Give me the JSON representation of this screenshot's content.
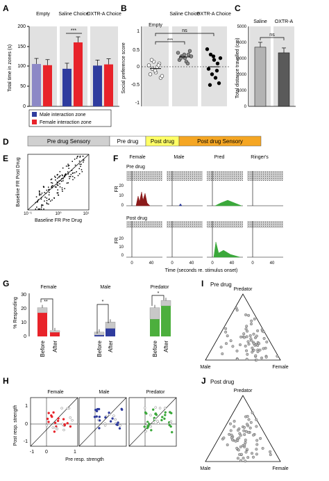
{
  "panels": {
    "A": {
      "label": "A",
      "groups": [
        "Empty",
        "Saline Choice",
        "OXTR-A Choice"
      ],
      "ylabel": "Total time in zones (s)",
      "yticks": [
        "0",
        "50",
        "100",
        "150",
        "200"
      ],
      "sig": "***",
      "legend": [
        "Male interaction zone",
        "Female interaction zone"
      ]
    },
    "B": {
      "label": "B",
      "groups": [
        "Empty",
        "Saline Choice",
        "OXTR-A Choice"
      ],
      "ylabel": "Social preference score",
      "yticks": [
        "1",
        "0.5",
        "0",
        "-0.5",
        "-1"
      ],
      "sig_ns": "ns",
      "sig_star": "***"
    },
    "C": {
      "label": "C",
      "groups": [
        "Saline",
        "OXTR-A"
      ],
      "ylabel": "Total distance travelled (cm)",
      "yticks": [
        "0",
        "1000",
        "2000",
        "3000",
        "4000",
        "5000"
      ],
      "sig_ns": "ns"
    },
    "D": {
      "label": "D",
      "stages": [
        "Pre drug Sensory",
        "Pre drug",
        "Post drug",
        "Post drug Sensory"
      ]
    },
    "E": {
      "label": "E",
      "ylabel": "Baseline FR Post Drug",
      "xlabel": "Baseline FR Pre Drug"
    },
    "F": {
      "label": "F",
      "columns": [
        "Female",
        "Male",
        "Pred",
        "Ringer's"
      ],
      "row1": "Pre drug",
      "row2": "Post drug",
      "ylabel": "FR",
      "yticks": [
        "20",
        "10",
        "0"
      ],
      "xticks": [
        "0",
        "40"
      ],
      "xlabel": "Time (seconds re. stimulus onset)"
    },
    "G": {
      "label": "G",
      "ylabel": "% Responding",
      "yticks": [
        "0",
        "10",
        "20",
        "30"
      ],
      "groups": [
        "Female",
        "Male",
        "Predator"
      ],
      "xticks": [
        "Before",
        "After"
      ],
      "sig": [
        "**",
        "*",
        "*"
      ]
    },
    "H": {
      "label": "H",
      "groups": [
        "Female",
        "Male",
        "Predator"
      ],
      "ylabel": "Post resp. strength",
      "xlabel": "Pre resp. strength",
      "ticks": [
        "-1",
        "0",
        "1"
      ]
    },
    "I": {
      "label": "I",
      "title": "Pre drug",
      "vertices": [
        "Predator",
        "Male",
        "Female"
      ]
    },
    "J": {
      "label": "J",
      "title": "Post drug",
      "vertices": [
        "Predator",
        "Male",
        "Female"
      ]
    }
  },
  "chart_data": [
    {
      "panel": "A",
      "type": "bar",
      "categories": [
        "Empty",
        "Saline Choice",
        "OXTR-A Choice"
      ],
      "series": [
        {
          "name": "Male interaction zone",
          "values": [
            106,
            94,
            102
          ],
          "color": "#2f3c9e"
        },
        {
          "name": "Female interaction zone",
          "values": [
            103,
            160,
            105
          ],
          "color": "#e8232a"
        }
      ],
      "ylabel": "Total time in zones (s)",
      "ylim": [
        0,
        200
      ]
    },
    {
      "panel": "B",
      "type": "scatter",
      "categories": [
        "Empty",
        "Saline Choice",
        "OXTR-A Choice"
      ],
      "ylabel": "Social preference score",
      "ylim": [
        -1,
        1
      ],
      "series": [
        {
          "values": [
            0.05,
            -0.05,
            -0.15,
            0.1,
            -0.2,
            0.15,
            0.0,
            -0.3,
            0.2,
            -0.1,
            0.05,
            -0.25
          ]
        },
        {
          "values": [
            0.4,
            0.3,
            0.25,
            0.35,
            0.2,
            0.3,
            0.15,
            0.45,
            0.25,
            0.35,
            0.1,
            0.3
          ]
        },
        {
          "values": [
            0.5,
            0.35,
            0.2,
            0.1,
            -0.05,
            -0.2,
            -0.3,
            -0.45,
            -0.5,
            0.3,
            -0.1,
            0.25
          ]
        }
      ]
    },
    {
      "panel": "C",
      "type": "bar",
      "categories": [
        "Saline",
        "OXTR-A"
      ],
      "values": [
        3700,
        3350
      ],
      "ylabel": "Total distance travelled (cm)",
      "ylim": [
        0,
        5000
      ]
    },
    {
      "panel": "G",
      "type": "bar",
      "categories": [
        "Female Before",
        "Female After",
        "Male Before",
        "Male After",
        "Predator Before",
        "Predator After"
      ],
      "values": [
        20,
        4,
        3,
        10,
        20,
        25
      ],
      "ylabel": "% Responding",
      "ylim": [
        0,
        30
      ]
    }
  ]
}
